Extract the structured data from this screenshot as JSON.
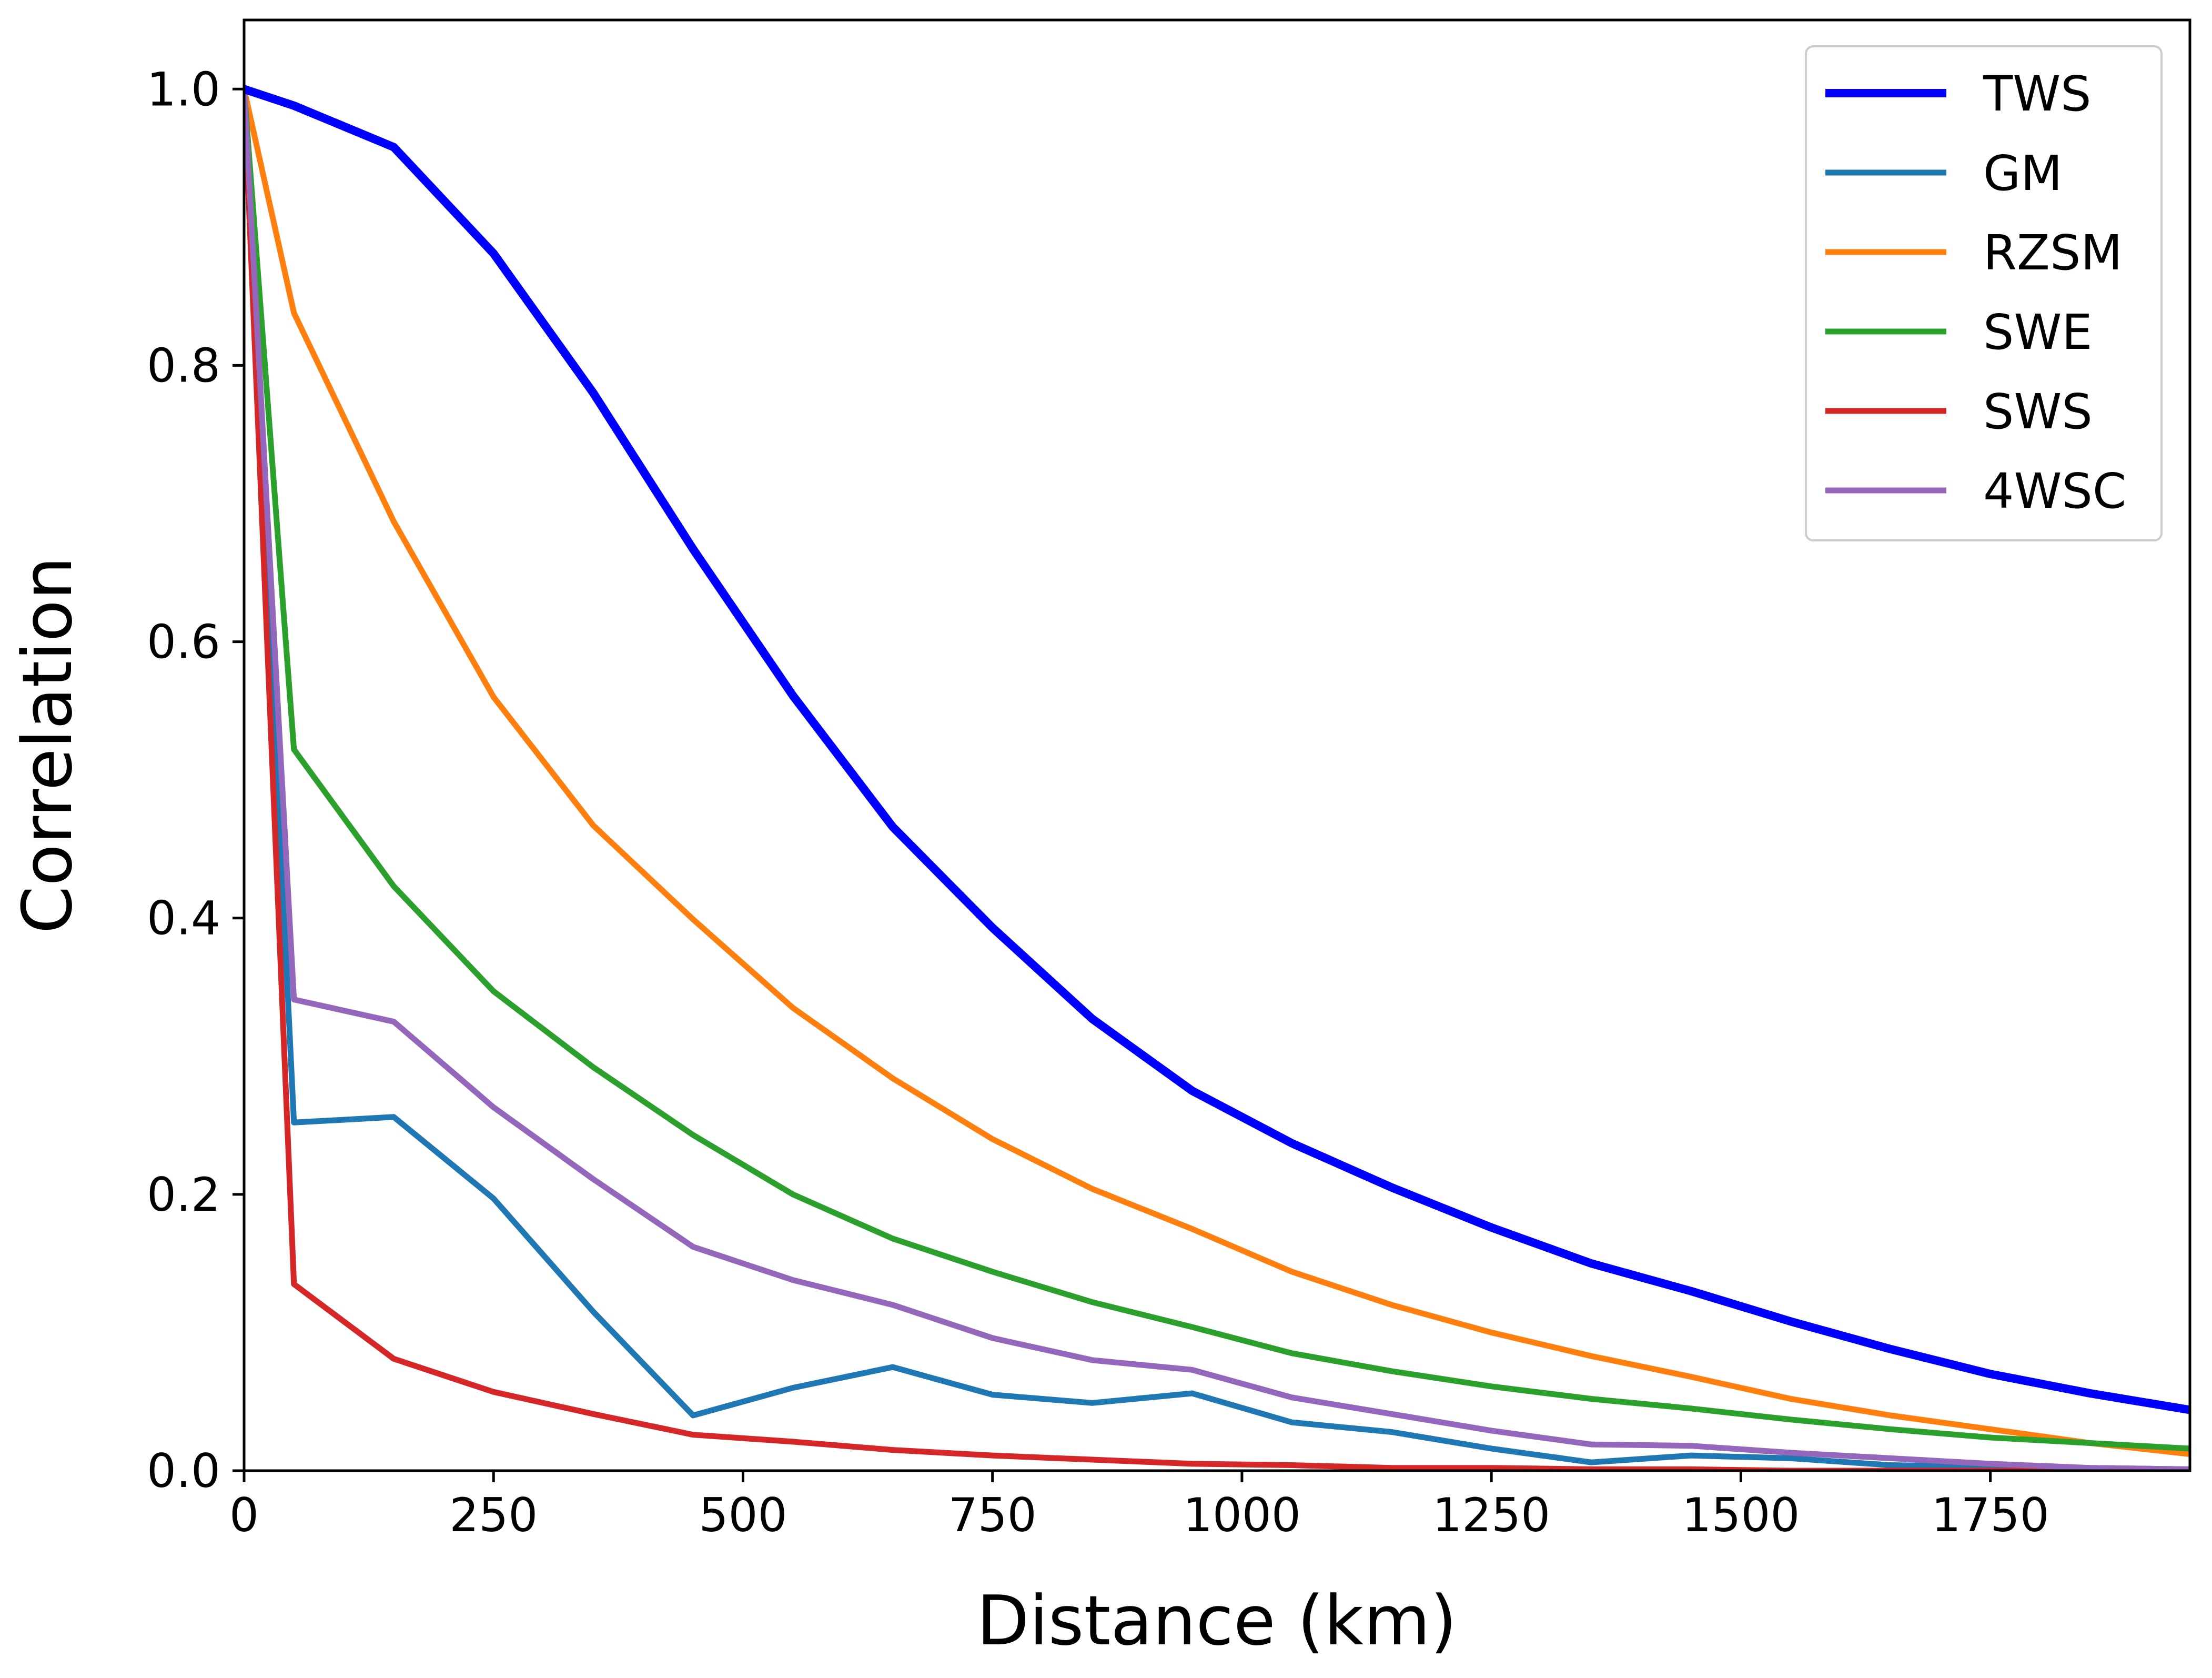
{
  "chart_data": {
    "type": "line",
    "title": "",
    "xlabel": "Distance (km)",
    "ylabel": "Correlation",
    "xlim": [
      0,
      1950
    ],
    "ylim": [
      0,
      1.05
    ],
    "xticks": [
      0,
      250,
      500,
      750,
      1000,
      1250,
      1500,
      1750
    ],
    "yticks": [
      "0.0",
      "0.2",
      "0.4",
      "0.6",
      "0.8",
      "1.0"
    ],
    "grid": false,
    "legend_position": "top-right",
    "x": [
      0,
      50,
      150,
      250,
      350,
      450,
      550,
      650,
      750,
      850,
      950,
      1050,
      1150,
      1250,
      1350,
      1450,
      1550,
      1650,
      1750,
      1850,
      1950
    ],
    "series": [
      {
        "name": "TWS",
        "color": "#0000ff",
        "thick": true,
        "values": [
          1.0,
          0.988,
          0.958,
          0.881,
          0.78,
          0.667,
          0.561,
          0.466,
          0.393,
          0.327,
          0.275,
          0.237,
          0.205,
          0.176,
          0.15,
          0.13,
          0.108,
          0.088,
          0.07,
          0.056,
          0.044
        ]
      },
      {
        "name": "GM",
        "color": "#1f77b4",
        "values": [
          1.0,
          0.252,
          0.256,
          0.197,
          0.115,
          0.04,
          0.06,
          0.075,
          0.055,
          0.049,
          0.056,
          0.035,
          0.028,
          0.016,
          0.006,
          0.011,
          0.009,
          0.004,
          0.003,
          0.002,
          0.001
        ]
      },
      {
        "name": "RZSM",
        "color": "#ff7f0e",
        "values": [
          1.0,
          0.838,
          0.687,
          0.56,
          0.467,
          0.399,
          0.335,
          0.284,
          0.24,
          0.204,
          0.175,
          0.144,
          0.12,
          0.1,
          0.083,
          0.068,
          0.052,
          0.04,
          0.03,
          0.02,
          0.012
        ]
      },
      {
        "name": "SWE",
        "color": "#2ca02c",
        "values": [
          1.0,
          0.522,
          0.423,
          0.347,
          0.292,
          0.243,
          0.2,
          0.168,
          0.144,
          0.122,
          0.104,
          0.085,
          0.072,
          0.061,
          0.052,
          0.045,
          0.037,
          0.03,
          0.024,
          0.02,
          0.016
        ]
      },
      {
        "name": "SWS",
        "color": "#d62728",
        "values": [
          1.0,
          0.135,
          0.081,
          0.057,
          0.041,
          0.026,
          0.021,
          0.015,
          0.011,
          0.008,
          0.005,
          0.004,
          0.002,
          0.002,
          0.001,
          0.001,
          0.0,
          0.0,
          0.0,
          0.0,
          0.0
        ]
      },
      {
        "name": "4WSC",
        "color": "#9467bd",
        "values": [
          1.0,
          0.341,
          0.325,
          0.263,
          0.211,
          0.162,
          0.138,
          0.12,
          0.096,
          0.08,
          0.073,
          0.053,
          0.041,
          0.029,
          0.019,
          0.018,
          0.013,
          0.009,
          0.005,
          0.002,
          0.001
        ]
      }
    ]
  }
}
